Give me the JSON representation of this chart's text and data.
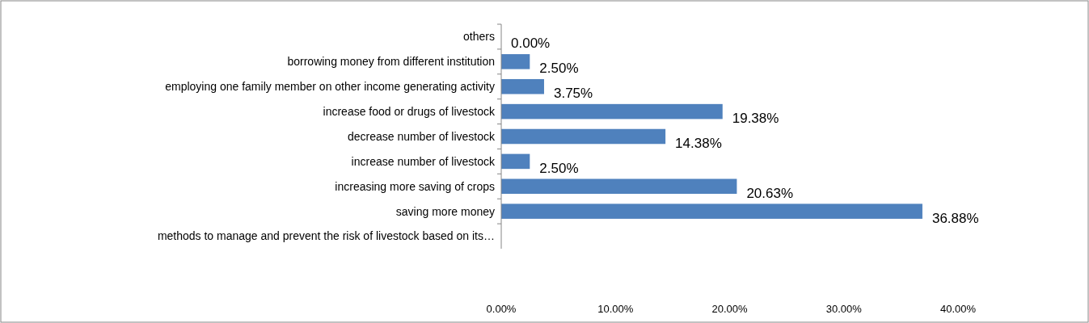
{
  "chart_data": {
    "type": "bar",
    "orientation": "horizontal",
    "categories": [
      "others",
      "borrowing money from different institution",
      "employing one family member on other income generating activity",
      "increase food or drugs of livestock",
      "decrease number of livestock",
      "increase number of livestock",
      "increasing more saving of crops",
      "saving more money",
      "methods to manage and prevent the risk of livestock based on its…"
    ],
    "values": [
      0,
      2.5,
      3.75,
      19.38,
      14.38,
      2.5,
      20.63,
      36.88,
      null
    ],
    "value_labels": [
      "0.00%",
      "2.50%",
      "3.75%",
      "19.38%",
      "14.38%",
      "2.50%",
      "20.63%",
      "36.88%",
      null
    ],
    "color": "#4f81bd",
    "xlim": [
      0,
      40
    ],
    "xticks": [
      {
        "value": 0,
        "label": "0.00%"
      },
      {
        "value": 10,
        "label": "10.00%"
      },
      {
        "value": 20,
        "label": "20.00%"
      },
      {
        "value": 30,
        "label": "30.00%"
      },
      {
        "value": 40,
        "label": "40.00%"
      }
    ],
    "grid": false
  }
}
